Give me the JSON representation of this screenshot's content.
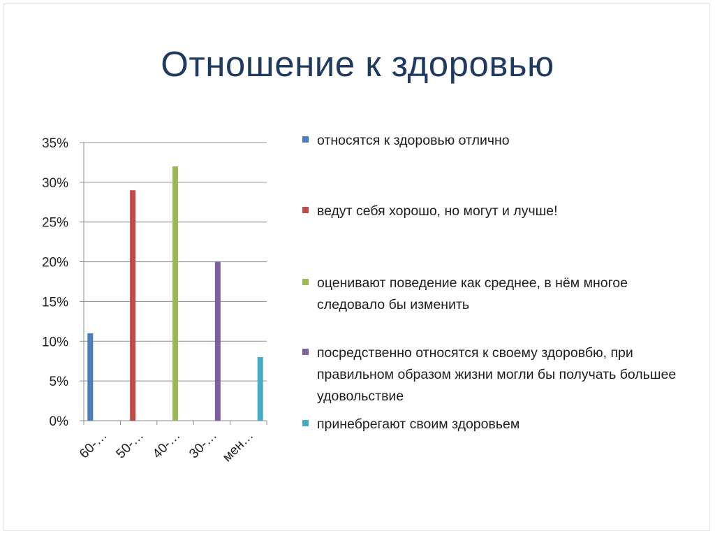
{
  "title": "Отношение к здоровью",
  "colors": {
    "title": "#1f3a60",
    "gridline": "#8c8c8c",
    "axis_text": "#222222"
  },
  "chart_data": {
    "type": "bar",
    "categories": [
      "60-…",
      "50-…",
      "40-…",
      "30-…",
      "мен…"
    ],
    "series": [
      {
        "name": "относятся к здоровью отлично",
        "color": "#4a7ebb",
        "values": [
          11,
          null,
          null,
          null,
          null
        ]
      },
      {
        "name": "ведут себя хорошо, но могут и лучше!",
        "color": "#be4b48",
        "values": [
          null,
          29,
          null,
          null,
          null
        ]
      },
      {
        "name": "оценивают поведение как среднее, в нём многое следовало бы изменить",
        "color": "#98b954",
        "values": [
          null,
          null,
          32,
          null,
          null
        ]
      },
      {
        "name": "посредственно относятся к своему здоровбю, при правильном образом жизни могли бы получать большее удовольствие",
        "color": "#7d60a0",
        "values": [
          null,
          null,
          null,
          20,
          null
        ]
      },
      {
        "name": "принебрегают своим здоровьем",
        "color": "#46aac5",
        "values": [
          null,
          null,
          null,
          null,
          8
        ]
      }
    ],
    "y_ticks": [
      "0%",
      "5%",
      "10%",
      "15%",
      "20%",
      "25%",
      "30%",
      "35%"
    ],
    "ylim": [
      0,
      35
    ],
    "y_unit": "%",
    "grid": true,
    "legend_position": "right",
    "xlabel": "",
    "ylabel": ""
  }
}
